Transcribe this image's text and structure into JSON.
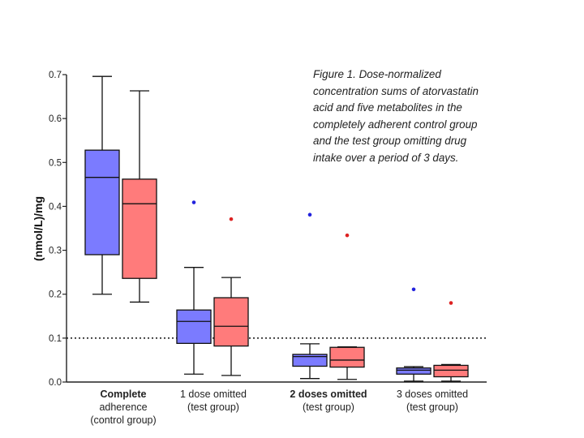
{
  "chart_data": {
    "type": "box",
    "title": "Figure 1. Dose-normalized concentration sums of atorvastatin acid and five metabolites in the completely adherent control group and the test group omitting drug intake over a period of 3 days.",
    "caption_lines": [
      "Figure 1. Dose-normalized",
      "concentration sums of atorvastatin",
      "acid and five metabolites in the",
      "completely adherent control group",
      "and the test group omitting drug",
      "intake over a period of 3 days."
    ],
    "ylabel": "(nmol/L)/mg",
    "xlabel": "",
    "ylim": [
      0.0,
      0.7
    ],
    "yticks": [
      "0.0",
      "0.1",
      "0.2",
      "0.3",
      "0.4",
      "0.5",
      "0.6",
      "0.7"
    ],
    "reference_line": 0.1,
    "categories": [
      {
        "label": [
          "Complete",
          "adherence",
          "(control group)"
        ],
        "bold_line": 0
      },
      {
        "label": [
          "1 dose omitted",
          "(test group)"
        ],
        "bold_line": 0
      },
      {
        "label": [
          "2 doses omitted",
          "(test group)"
        ],
        "bold_line": 0
      },
      {
        "label": [
          "3 doses omitted",
          "(test group)"
        ],
        "bold_line": 0
      }
    ],
    "series": [
      {
        "name": "blue",
        "color": "#7b7bff",
        "boxes": [
          {
            "min": 0.2,
            "q1": 0.29,
            "median": 0.466,
            "q3": 0.528,
            "max": 0.696,
            "outliers": []
          },
          {
            "min": 0.018,
            "q1": 0.088,
            "median": 0.138,
            "q3": 0.164,
            "max": 0.261,
            "outliers": [
              0.409
            ]
          },
          {
            "min": 0.008,
            "q1": 0.036,
            "median": 0.058,
            "q3": 0.063,
            "max": 0.087,
            "outliers": [
              0.381
            ]
          },
          {
            "min": 0.002,
            "q1": 0.018,
            "median": 0.027,
            "q3": 0.032,
            "max": 0.035,
            "outliers": [
              0.211
            ]
          }
        ]
      },
      {
        "name": "red",
        "color": "#ff7b7b",
        "boxes": [
          {
            "min": 0.182,
            "q1": 0.236,
            "median": 0.406,
            "q3": 0.462,
            "max": 0.663,
            "outliers": []
          },
          {
            "min": 0.015,
            "q1": 0.082,
            "median": 0.127,
            "q3": 0.192,
            "max": 0.238,
            "outliers": [
              0.371
            ]
          },
          {
            "min": 0.006,
            "q1": 0.034,
            "median": 0.05,
            "q3": 0.079,
            "max": 0.08,
            "outliers": [
              0.334
            ]
          },
          {
            "min": 0.002,
            "q1": 0.012,
            "median": 0.027,
            "q3": 0.038,
            "max": 0.04,
            "outliers": [
              0.18
            ]
          }
        ]
      }
    ]
  }
}
